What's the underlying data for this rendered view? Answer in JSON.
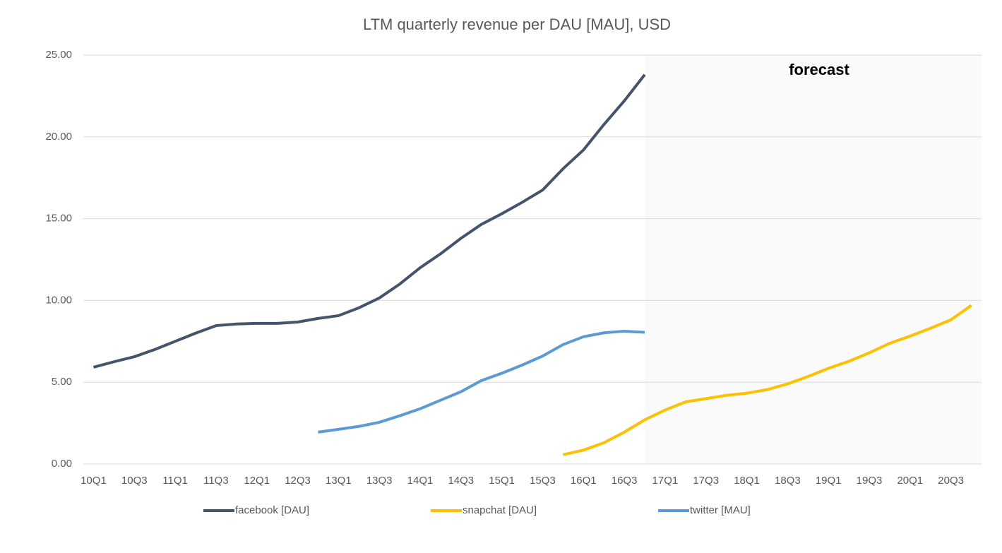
{
  "chart_data": {
    "type": "line",
    "title": "LTM quarterly revenue per DAU [MAU], USD",
    "annotations": [
      "forecast"
    ],
    "categories": [
      "10Q1",
      null,
      "10Q3",
      null,
      "11Q1",
      null,
      "11Q3",
      null,
      "12Q1",
      null,
      "12Q3",
      null,
      "13Q1",
      null,
      "13Q3",
      null,
      "14Q1",
      null,
      "14Q3",
      null,
      "15Q1",
      null,
      "15Q3",
      null,
      "16Q1",
      null,
      "16Q3",
      null,
      "17Q1",
      null,
      "17Q3",
      null,
      "18Q1",
      null,
      "18Q3",
      null,
      "19Q1",
      null,
      "19Q3",
      null,
      "20Q1",
      null,
      "20Q3",
      null
    ],
    "series": [
      {
        "name": "facebook [DAU]",
        "color": "#44546a",
        "values": [
          5.92,
          6.25,
          6.56,
          7.0,
          7.5,
          8.0,
          8.46,
          8.56,
          8.6,
          8.6,
          8.68,
          8.9,
          9.07,
          9.55,
          10.15,
          11.0,
          12.0,
          12.85,
          13.8,
          14.65,
          15.3,
          16.0,
          16.75,
          18.05,
          19.2,
          20.75,
          22.2,
          23.8,
          null,
          null,
          null,
          null,
          null,
          null,
          null,
          null,
          null,
          null,
          null,
          null,
          null,
          null,
          null,
          null
        ]
      },
      {
        "name": "snapchat [DAU]",
        "color": "#ffc000",
        "values": [
          null,
          null,
          null,
          null,
          null,
          null,
          null,
          null,
          null,
          null,
          null,
          null,
          null,
          null,
          null,
          null,
          null,
          null,
          null,
          null,
          null,
          null,
          null,
          0.57,
          0.85,
          1.3,
          1.95,
          2.7,
          3.3,
          3.8,
          4.0,
          4.2,
          4.33,
          4.55,
          4.9,
          5.35,
          5.85,
          6.28,
          6.8,
          7.38,
          7.82,
          8.3,
          8.82,
          9.7
        ]
      },
      {
        "name": "twitter [MAU]",
        "color": "#5b9bd5",
        "values": [
          null,
          null,
          null,
          null,
          null,
          null,
          null,
          null,
          null,
          null,
          null,
          1.95,
          2.12,
          2.3,
          2.55,
          2.95,
          3.38,
          3.9,
          4.42,
          5.1,
          5.55,
          6.05,
          6.6,
          7.3,
          7.78,
          8.02,
          8.12,
          8.05,
          null,
          null,
          null,
          null,
          null,
          null,
          null,
          null,
          null,
          null,
          null,
          null,
          null,
          null,
          null,
          null
        ]
      }
    ],
    "ylim": [
      0,
      25
    ],
    "yticks": [
      {
        "value": 0,
        "label": "0.00"
      },
      {
        "value": 5,
        "label": "5.00"
      },
      {
        "value": 10,
        "label": "10.00"
      },
      {
        "value": 15,
        "label": "15.00"
      },
      {
        "value": 20,
        "label": "20.00"
      },
      {
        "value": 25,
        "label": "25.00"
      }
    ],
    "grid": true,
    "legend": "bottom"
  }
}
